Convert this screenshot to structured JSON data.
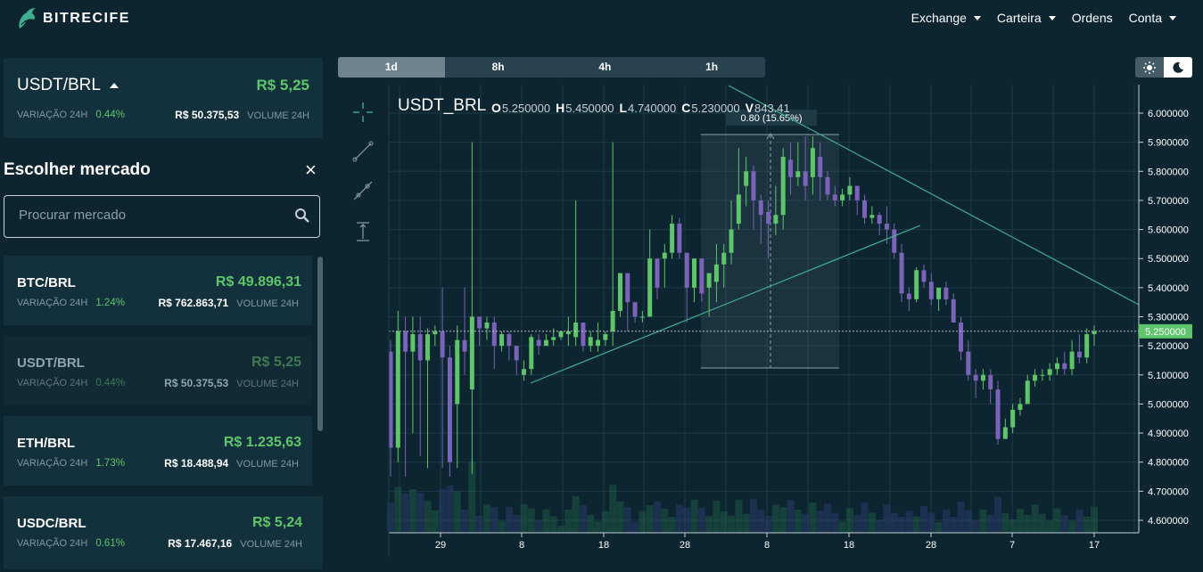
{
  "brand": {
    "name": "BITRECIFE"
  },
  "nav": {
    "items": [
      "Exchange",
      "Carteira",
      "Ordens",
      "Conta"
    ]
  },
  "summary": {
    "pair": "USDT/BRL",
    "price": "R$ 5,25",
    "change_label": "VARIAÇÃO 24H",
    "change": "0.44%",
    "volume": "R$ 50.375,53",
    "volume_label": "VOLUME 24H"
  },
  "chooser": {
    "title": "Escolher mercado",
    "close_icon": "×",
    "search_placeholder": "Procurar mercado"
  },
  "markets": [
    {
      "name": "BTC/BRL",
      "price": "R$ 49.896,31",
      "change_label": "VARIAÇÃO 24H",
      "change": "1.24%",
      "volume": "R$ 762.863,71",
      "volume_label": "VOLUME 24H"
    },
    {
      "name": "USDT/BRL",
      "price": "R$ 5,25",
      "change_label": "VARIAÇÃO 24H",
      "change": "0.44%",
      "volume": "R$ 50.375,53",
      "volume_label": "VOLUME 24H"
    },
    {
      "name": "ETH/BRL",
      "price": "R$ 1.235,63",
      "change_label": "VARIAÇÃO 24H",
      "change": "1.73%",
      "volume": "R$ 18.488,94",
      "volume_label": "VOLUME 24H"
    },
    {
      "name": "USDC/BRL",
      "price": "R$ 5,24",
      "change_label": "VARIAÇÃO 24H",
      "change": "0.61%",
      "volume": "R$ 17.467,16",
      "volume_label": "VOLUME 24H"
    }
  ],
  "timeframes": {
    "items": [
      "1d",
      "8h",
      "4h",
      "1h"
    ],
    "active": "1d"
  },
  "chart_header": {
    "symbol": "USDT_BRL",
    "o_label": "O",
    "o": "5.250000",
    "h_label": "H",
    "h": "5.450000",
    "l_label": "L",
    "l": "4.740000",
    "c_label": "C",
    "c": "5.230000",
    "v_label": "V",
    "v": "843.41"
  },
  "colors": {
    "up": "#5fc56a",
    "down": "#7a63b8",
    "grid": "#1c3a46",
    "trendline": "#3fae8f",
    "background": "#0d2530"
  },
  "chart_data": {
    "type": "candlestick",
    "x_tick_labels": [
      "29",
      "8",
      "18",
      "28",
      "8",
      "18",
      "28",
      "7",
      "17"
    ],
    "y_tick_labels": [
      "6.000000",
      "5.900000",
      "5.800000",
      "5.700000",
      "5.600000",
      "5.500000",
      "5.400000",
      "5.300000",
      "5.200000",
      "5.100000",
      "5.000000",
      "4.900000",
      "4.800000",
      "4.700000",
      "4.600000"
    ],
    "ylim": [
      4.58,
      6.05
    ],
    "last_price_label": "5.250000",
    "last_price": 5.25,
    "measure_label": "0.80  (15.65%)",
    "candles": [
      [
        5.18,
        4.85,
        5.22,
        4.75
      ],
      [
        4.85,
        5.25,
        5.32,
        4.8
      ],
      [
        5.25,
        5.18,
        5.3,
        4.75
      ],
      [
        5.18,
        5.24,
        5.3,
        4.9
      ],
      [
        5.24,
        5.15,
        5.3,
        4.82
      ],
      [
        5.15,
        5.24,
        5.26,
        4.78
      ],
      [
        5.24,
        5.25,
        5.27,
        5.2
      ],
      [
        5.25,
        5.16,
        5.4,
        4.78
      ],
      [
        5.16,
        4.8,
        5.2,
        4.75
      ],
      [
        5.0,
        5.22,
        5.27,
        4.78
      ],
      [
        5.22,
        5.18,
        5.4,
        5.1
      ],
      [
        5.05,
        5.3,
        5.9,
        4.76
      ],
      [
        5.3,
        5.26,
        5.3,
        5.2
      ],
      [
        5.26,
        5.28,
        5.3,
        5.22
      ],
      [
        5.28,
        5.2,
        5.3,
        5.12
      ],
      [
        5.2,
        5.24,
        5.25,
        5.18
      ],
      [
        5.24,
        5.2,
        5.25,
        5.15
      ],
      [
        5.2,
        5.15,
        5.2,
        5.1
      ],
      [
        5.1,
        5.12,
        5.15,
        5.08
      ],
      [
        5.12,
        5.23,
        5.24,
        5.1
      ],
      [
        5.22,
        5.2,
        5.24,
        5.17
      ],
      [
        5.2,
        5.22,
        5.24,
        5.2
      ],
      [
        5.22,
        5.23,
        5.26,
        5.2
      ],
      [
        5.23,
        5.25,
        5.25,
        5.22
      ],
      [
        5.24,
        5.25,
        5.3,
        5.2
      ],
      [
        5.23,
        5.28,
        5.7,
        5.2
      ],
      [
        5.28,
        5.2,
        5.28,
        5.18
      ],
      [
        5.2,
        5.23,
        5.25,
        5.18
      ],
      [
        5.2,
        5.22,
        5.28,
        5.18
      ],
      [
        5.22,
        5.24,
        5.25,
        5.2
      ],
      [
        5.25,
        5.32,
        5.9,
        5.2
      ],
      [
        5.32,
        5.45,
        5.45,
        5.3
      ],
      [
        5.45,
        5.35,
        5.45,
        5.25
      ],
      [
        5.35,
        5.3,
        5.35,
        5.28
      ],
      [
        5.3,
        5.3,
        5.32,
        5.28
      ],
      [
        5.3,
        5.5,
        5.6,
        5.3
      ],
      [
        5.5,
        5.4,
        5.5,
        5.36
      ],
      [
        5.5,
        5.52,
        5.55,
        5.4
      ],
      [
        5.52,
        5.62,
        5.65,
        5.5
      ],
      [
        5.62,
        5.52,
        5.64,
        5.5
      ],
      [
        5.52,
        5.4,
        5.52,
        5.28
      ],
      [
        5.4,
        5.5,
        5.5,
        5.35
      ],
      [
        5.5,
        5.38,
        5.5,
        5.35
      ],
      [
        5.4,
        5.45,
        5.45,
        5.3
      ],
      [
        5.42,
        5.48,
        5.55,
        5.35
      ],
      [
        5.48,
        5.52,
        5.55,
        5.4
      ],
      [
        5.52,
        5.6,
        5.7,
        5.48
      ],
      [
        5.62,
        5.72,
        5.88,
        5.6
      ],
      [
        5.75,
        5.8,
        5.85,
        5.68
      ],
      [
        5.8,
        5.7,
        5.82,
        5.6
      ],
      [
        5.7,
        5.65,
        5.72,
        5.55
      ],
      [
        5.66,
        5.62,
        5.7,
        5.5
      ],
      [
        5.62,
        5.65,
        5.75,
        5.58
      ],
      [
        5.65,
        5.85,
        5.88,
        5.6
      ],
      [
        5.84,
        5.78,
        5.9,
        5.72
      ],
      [
        5.78,
        5.8,
        5.9,
        5.75
      ],
      [
        5.8,
        5.75,
        5.92,
        5.7
      ],
      [
        5.78,
        5.88,
        5.92,
        5.72
      ],
      [
        5.85,
        5.78,
        5.9,
        5.7
      ],
      [
        5.78,
        5.72,
        5.8,
        5.7
      ],
      [
        5.72,
        5.7,
        5.75,
        5.68
      ],
      [
        5.7,
        5.72,
        5.74,
        5.68
      ],
      [
        5.72,
        5.75,
        5.78,
        5.7
      ],
      [
        5.75,
        5.7,
        5.75,
        5.65
      ],
      [
        5.7,
        5.64,
        5.72,
        5.62
      ],
      [
        5.64,
        5.65,
        5.68,
        5.62
      ],
      [
        5.65,
        5.62,
        5.66,
        5.58
      ],
      [
        5.62,
        5.6,
        5.68,
        5.55
      ],
      [
        5.6,
        5.52,
        5.62,
        5.5
      ],
      [
        5.52,
        5.38,
        5.55,
        5.35
      ],
      [
        5.38,
        5.36,
        5.4,
        5.32
      ],
      [
        5.36,
        5.46,
        5.47,
        5.35
      ],
      [
        5.46,
        5.42,
        5.48,
        5.4
      ],
      [
        5.42,
        5.36,
        5.45,
        5.34
      ],
      [
        5.36,
        5.4,
        5.4,
        5.32
      ],
      [
        5.4,
        5.36,
        5.42,
        5.34
      ],
      [
        5.36,
        5.28,
        5.38,
        5.28
      ],
      [
        5.28,
        5.18,
        5.3,
        5.15
      ],
      [
        5.18,
        5.1,
        5.22,
        5.08
      ],
      [
        5.1,
        5.08,
        5.12,
        5.02
      ],
      [
        5.08,
        5.1,
        5.12,
        5.05
      ],
      [
        5.1,
        5.05,
        5.12,
        5.0
      ],
      [
        5.05,
        4.88,
        5.08,
        4.86
      ],
      [
        4.88,
        4.92,
        4.95,
        4.88
      ],
      [
        4.92,
        4.98,
        5.0,
        4.9
      ],
      [
        4.98,
        5.0,
        5.02,
        4.96
      ],
      [
        5.0,
        5.08,
        5.1,
        5.0
      ],
      [
        5.08,
        5.1,
        5.12,
        5.06
      ],
      [
        5.1,
        5.1,
        5.12,
        5.08
      ],
      [
        5.1,
        5.12,
        5.14,
        5.08
      ],
      [
        5.12,
        5.14,
        5.16,
        5.1
      ],
      [
        5.14,
        5.12,
        5.18,
        5.1
      ],
      [
        5.12,
        5.18,
        5.22,
        5.1
      ],
      [
        5.18,
        5.16,
        5.24,
        5.14
      ],
      [
        5.16,
        5.24,
        5.26,
        5.14
      ],
      [
        5.24,
        5.25,
        5.27,
        5.2
      ]
    ]
  }
}
